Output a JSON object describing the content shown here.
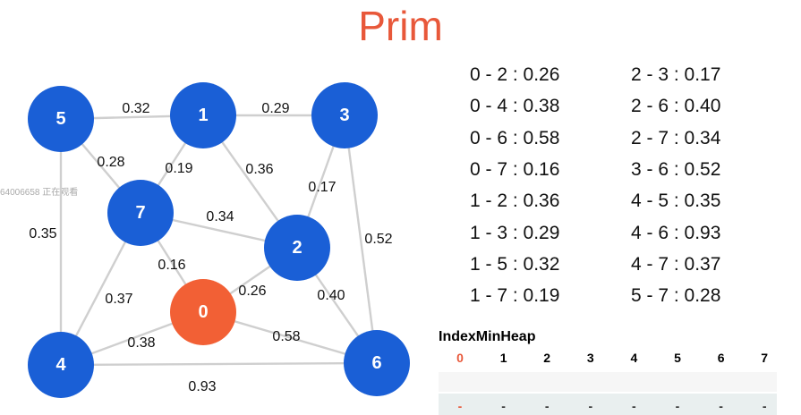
{
  "title": "Prim",
  "watermark": "64006658 正在观看",
  "colors": {
    "vertex": "#1a5fd6",
    "current_vertex": "#f26035",
    "edge": "#cfcfcf",
    "title": "#e8583a"
  },
  "vertices": [
    "0",
    "1",
    "2",
    "3",
    "4",
    "5",
    "6",
    "7"
  ],
  "current_vertex": "0",
  "edges": [
    {
      "u": "5",
      "v": "1",
      "w": "0.32"
    },
    {
      "u": "1",
      "v": "3",
      "w": "0.29"
    },
    {
      "u": "5",
      "v": "7",
      "w": "0.28"
    },
    {
      "u": "1",
      "v": "7",
      "w": "0.19"
    },
    {
      "u": "1",
      "v": "2",
      "w": "0.36"
    },
    {
      "u": "3",
      "v": "2",
      "w": "0.17"
    },
    {
      "u": "7",
      "v": "2",
      "w": "0.34"
    },
    {
      "u": "5",
      "v": "4",
      "w": "0.35"
    },
    {
      "u": "3",
      "v": "6",
      "w": "0.52"
    },
    {
      "u": "7",
      "v": "0",
      "w": "0.16"
    },
    {
      "u": "7",
      "v": "4",
      "w": "0.37"
    },
    {
      "u": "0",
      "v": "2",
      "w": "0.26"
    },
    {
      "u": "2",
      "v": "6",
      "w": "0.40"
    },
    {
      "u": "0",
      "v": "4",
      "w": "0.38"
    },
    {
      "u": "0",
      "v": "6",
      "w": "0.58"
    },
    {
      "u": "4",
      "v": "6",
      "w": "0.93"
    }
  ],
  "edge_list": [
    "0 - 2 : 0.26",
    "0 - 4 : 0.38",
    "0 - 6 : 0.58",
    "0 - 7 : 0.16",
    "1 - 2 : 0.36",
    "1 - 3 : 0.29",
    "1 - 5 : 0.32",
    "1 - 7 : 0.19",
    "2 - 3 : 0.17",
    "2 - 6 : 0.40",
    "2 - 7 : 0.34",
    "3 - 6 : 0.52",
    "4 - 5 : 0.35",
    "4 - 6 : 0.93",
    "4 - 7 : 0.37",
    "5 - 7 : 0.28"
  ],
  "heap": {
    "title": "IndexMinHeap",
    "indices": [
      "0",
      "1",
      "2",
      "3",
      "4",
      "5",
      "6",
      "7"
    ],
    "values": [
      "-",
      "-",
      "-",
      "-",
      "-",
      "-",
      "-",
      "-"
    ],
    "highlight_index": "0"
  }
}
